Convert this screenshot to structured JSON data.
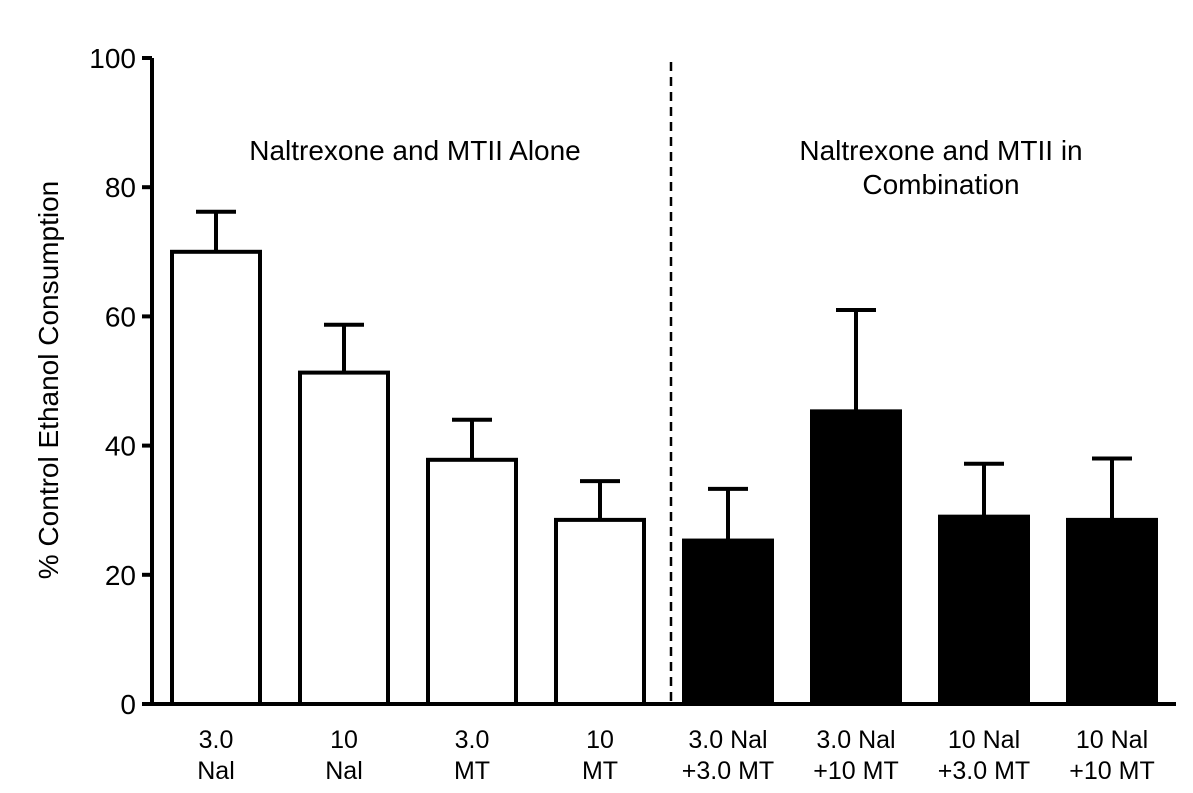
{
  "chart_data": {
    "type": "bar",
    "ylabel": "% Control Ethanol Consumption",
    "xlabel": "",
    "ylim": [
      0,
      100
    ],
    "yticks": [
      0,
      20,
      40,
      60,
      80,
      100
    ],
    "grid": false,
    "categories": [
      [
        "3.0",
        "Nal"
      ],
      [
        "10",
        "Nal"
      ],
      [
        "3.0",
        "MT"
      ],
      [
        "10",
        "MT"
      ],
      [
        "3.0 Nal",
        "+3.0 MT"
      ],
      [
        "3.0 Nal",
        "+10 MT"
      ],
      [
        "10 Nal",
        "+3.0 MT"
      ],
      [
        "10 Nal",
        "+10 MT"
      ]
    ],
    "values": [
      70,
      51.3,
      37.8,
      28.5,
      25.3,
      45.3,
      29.0,
      28.5
    ],
    "errors": [
      6.2,
      7.4,
      6.2,
      6.0,
      8.0,
      15.7,
      8.2,
      9.5
    ],
    "fill_colors": [
      "#ffffff",
      "#ffffff",
      "#ffffff",
      "#ffffff",
      "#000000",
      "#000000",
      "#000000",
      "#000000"
    ],
    "groups": [
      {
        "label_lines": [
          "Naltrexone and MTII Alone"
        ],
        "bar_indices": [
          0,
          1,
          2,
          3
        ]
      },
      {
        "label_lines": [
          "Naltrexone and MTII in",
          "Combination"
        ],
        "bar_indices": [
          4,
          5,
          6,
          7
        ]
      }
    ]
  }
}
